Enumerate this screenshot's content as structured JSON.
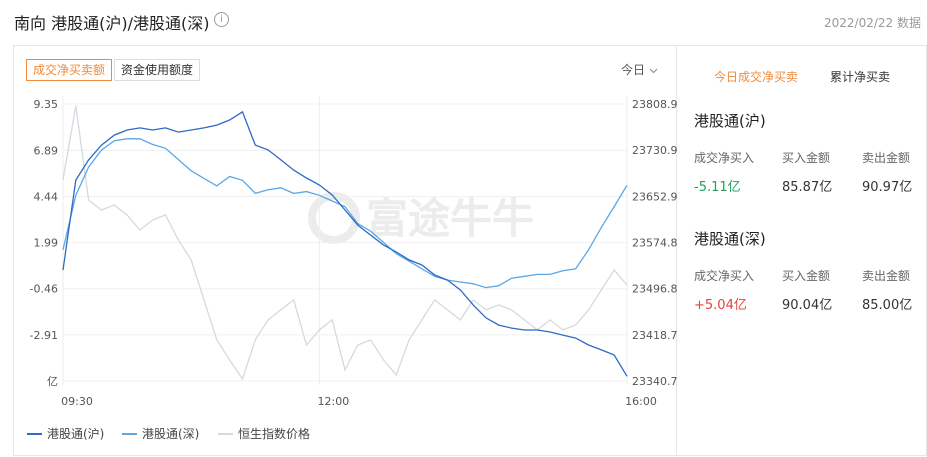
{
  "header": {
    "title": "南向 港股通(沪)/港股通(深)",
    "info_icon": "i",
    "date_text": "2022/02/22 数据"
  },
  "controls": {
    "tabs": [
      "成交净买卖额",
      "资金使用额度"
    ],
    "period": "今日"
  },
  "watermark": "富途牛牛",
  "chart_data": {
    "type": "line",
    "categories": [
      "09:30",
      null,
      null,
      null,
      null,
      null,
      null,
      null,
      null,
      null,
      null,
      null,
      null,
      null,
      null,
      null,
      null,
      null,
      null,
      null,
      "12:00",
      null,
      null,
      null,
      null,
      null,
      null,
      null,
      null,
      null,
      null,
      null,
      null,
      null,
      null,
      null,
      null,
      null,
      null,
      null,
      null,
      null,
      null,
      null,
      "16:00"
    ],
    "ylim": [
      -5.36,
      9.35
    ],
    "yticks": [
      9.35,
      6.89,
      4.44,
      1.99,
      -0.46,
      -2.91,
      {
        "value": -5.36,
        "label": "亿"
      }
    ],
    "y2lim": [
      23340.7,
      23808.9
    ],
    "y2ticks": [
      23808.9,
      23730.9,
      23652.9,
      23574.8,
      23496.8,
      23418.7,
      23340.7
    ],
    "grid": true,
    "series": [
      {
        "name": "港股通(沪)",
        "color": "#2d6bc4",
        "values": [
          0.53,
          5.31,
          6.38,
          7.17,
          7.7,
          7.97,
          8.08,
          7.97,
          8.08,
          7.86,
          7.97,
          8.08,
          8.23,
          8.5,
          8.93,
          7.17,
          6.91,
          6.38,
          5.84,
          5.42,
          5.05,
          4.52,
          3.72,
          2.92,
          2.39,
          1.86,
          1.49,
          1.07,
          0.8,
          0.27,
          0.0,
          -0.53,
          -1.32,
          -2.01,
          -2.39,
          -2.55,
          -2.65,
          -2.65,
          -2.76,
          -2.92,
          -3.08,
          -3.45,
          -3.71,
          -3.98,
          -5.11
        ]
      },
      {
        "name": "港股通(深)",
        "color": "#5aa8e6",
        "values": [
          1.6,
          4.5,
          6.0,
          6.9,
          7.4,
          7.5,
          7.5,
          7.2,
          7.0,
          6.4,
          5.8,
          5.4,
          5.0,
          5.5,
          5.3,
          4.6,
          4.8,
          4.9,
          4.6,
          4.7,
          4.5,
          4.2,
          3.9,
          3.0,
          2.6,
          2.0,
          1.4,
          1.0,
          0.6,
          0.2,
          0.0,
          -0.1,
          -0.2,
          -0.4,
          -0.3,
          0.1,
          0.2,
          0.3,
          0.3,
          0.5,
          0.6,
          1.6,
          2.8,
          3.9,
          5.04
        ]
      },
      {
        "name": "恒生指数价格",
        "color": "#d5d9e0",
        "axis": "y2",
        "values": [
          23680.5,
          23806,
          23646.7,
          23629.8,
          23638.2,
          23621.3,
          23596.0,
          23612.9,
          23621.3,
          23579.1,
          23545.3,
          23477.7,
          23410.1,
          23376.3,
          23344,
          23410.1,
          23443.9,
          23460.8,
          23477.7,
          23401.6,
          23427.0,
          23443.9,
          23359.4,
          23401.6,
          23410.1,
          23376.3,
          23350.9,
          23410.1,
          23443.9,
          23477.7,
          23460.8,
          23443.9,
          23477.7,
          23460.8,
          23469.3,
          23460.8,
          23443.9,
          23427.0,
          23443.9,
          23427.0,
          23435.4,
          23460.8,
          23494.6,
          23528.4,
          23503.0
        ]
      }
    ]
  },
  "side_panel": {
    "tabs": [
      "今日成交净买卖",
      "累计净买卖"
    ],
    "sections": [
      {
        "title": "港股通(沪)",
        "labels": [
          "成交净买入",
          "买入金额",
          "卖出金额"
        ],
        "values": [
          "-5.11亿",
          "85.87亿",
          "90.97亿"
        ]
      },
      {
        "title": "港股通(深)",
        "labels": [
          "成交净买入",
          "买入金额",
          "卖出金额"
        ],
        "values": [
          "+5.04亿",
          "90.04亿",
          "85.00亿"
        ]
      }
    ]
  }
}
